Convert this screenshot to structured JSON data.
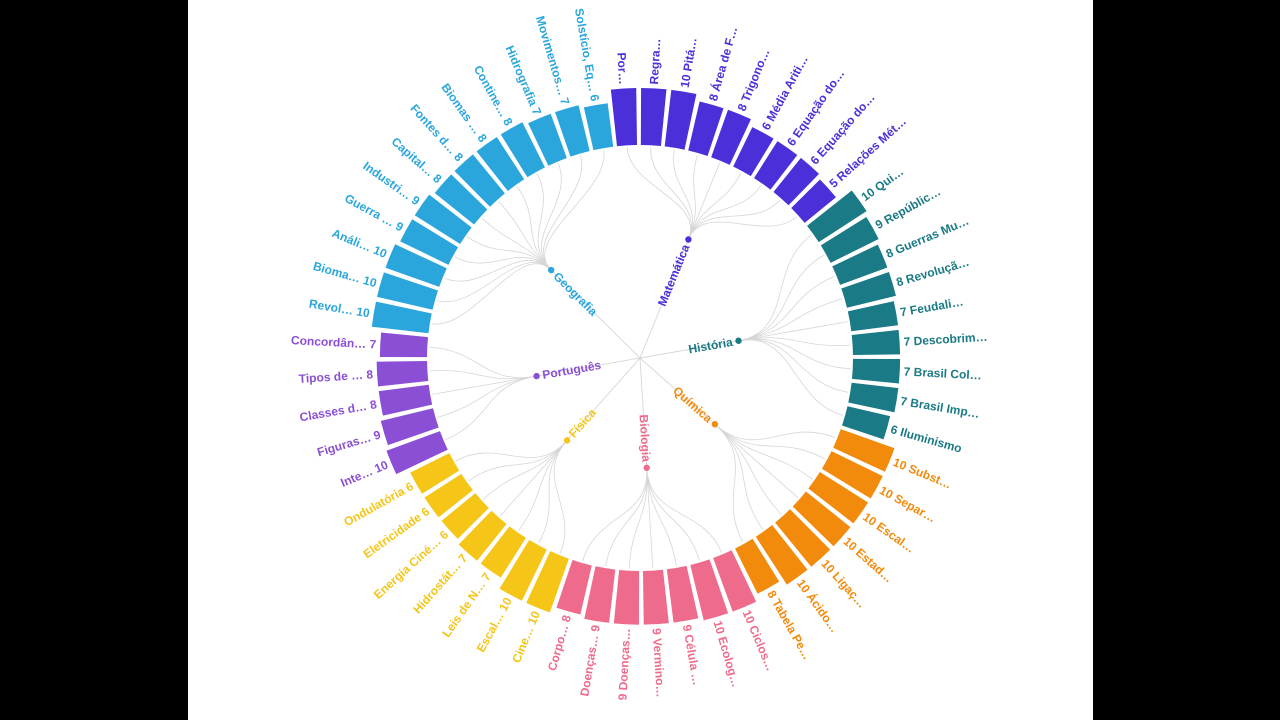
{
  "chart_data": {
    "type": "radial-bar-dendrogram",
    "groups": [
      {
        "name": "Matemática",
        "color": "#4b2fd9",
        "items": [
          {
            "label": "Por…",
            "value": 10
          },
          {
            "label": "Regra…",
            "value": 10
          },
          {
            "label": "10 Pitá…",
            "value": 10
          },
          {
            "label": "8 Área de F…",
            "value": 8
          },
          {
            "label": "8 Trigono…",
            "value": 8
          },
          {
            "label": "6 Média Ariti…",
            "value": 6
          },
          {
            "label": "6 Equação do…",
            "value": 6
          },
          {
            "label": "6 Equação do…",
            "value": 6
          },
          {
            "label": "5 Relações Mét…",
            "value": 5
          }
        ]
      },
      {
        "name": "História",
        "color": "#1a7a85",
        "items": [
          {
            "label": "10 Qui…",
            "value": 10
          },
          {
            "label": "9 Repúblic…",
            "value": 9
          },
          {
            "label": "8 Guerras Mu…",
            "value": 8
          },
          {
            "label": "8 Revoluçã…",
            "value": 8
          },
          {
            "label": "7 Feudali…",
            "value": 7
          },
          {
            "label": "7 Descobrim…",
            "value": 7
          },
          {
            "label": "7 Brasil Col…",
            "value": 7
          },
          {
            "label": "7 Brasil Imp…",
            "value": 7
          },
          {
            "label": "6 Iluminismo",
            "value": 6
          }
        ]
      },
      {
        "name": "Química",
        "color": "#f28a0c",
        "items": [
          {
            "label": "10 Subst…",
            "value": 10
          },
          {
            "label": "10 Separ…",
            "value": 10
          },
          {
            "label": "10 Escal…",
            "value": 10
          },
          {
            "label": "10 Estad…",
            "value": 10
          },
          {
            "label": "10 Ligaç…",
            "value": 10
          },
          {
            "label": "10 Ácido…",
            "value": 10
          },
          {
            "label": "8 Tabela Pe…",
            "value": 8
          }
        ]
      },
      {
        "name": "Biologia",
        "color": "#ef6b8c",
        "items": [
          {
            "label": "10 Ciclos…",
            "value": 10
          },
          {
            "label": "10 Ecolog…",
            "value": 10
          },
          {
            "label": "9 Célula …",
            "value": 9
          },
          {
            "label": "9 Vermino…",
            "value": 9
          },
          {
            "label": "9 Doenças…",
            "value": 9
          },
          {
            "label": "Doenças… 9",
            "value": 9
          },
          {
            "label": "Corpo… 8",
            "value": 8
          }
        ]
      },
      {
        "name": "Física",
        "color": "#f5c518",
        "items": [
          {
            "label": "Cine… 10",
            "value": 10
          },
          {
            "label": "Escal… 10",
            "value": 10
          },
          {
            "label": "Leis de N… 7",
            "value": 7
          },
          {
            "label": "Hidrostát… 7",
            "value": 7
          },
          {
            "label": "Energia Ciné… 6",
            "value": 6
          },
          {
            "label": "Eletricidade 6",
            "value": 6
          },
          {
            "label": "Ondulatória 6",
            "value": 6
          }
        ]
      },
      {
        "name": "Português",
        "color": "#8b4fd6",
        "items": [
          {
            "label": "Inte… 10",
            "value": 10
          },
          {
            "label": "Figuras… 9",
            "value": 9
          },
          {
            "label": "Classes d… 8",
            "value": 8
          },
          {
            "label": "Tipos de … 8",
            "value": 8
          },
          {
            "label": "Concordân… 7",
            "value": 7
          }
        ]
      },
      {
        "name": "Geografia",
        "color": "#2aa6dc",
        "items": [
          {
            "label": "Revol… 10",
            "value": 10
          },
          {
            "label": "Bioma… 10",
            "value": 10
          },
          {
            "label": "Análi… 10",
            "value": 10
          },
          {
            "label": "Guerra … 9",
            "value": 9
          },
          {
            "label": "Industri… 9",
            "value": 9
          },
          {
            "label": "Capital… 8",
            "value": 8
          },
          {
            "label": "Fontes d… 8",
            "value": 8
          },
          {
            "label": "Biomas … 8",
            "value": 8
          },
          {
            "label": "Contine… 8",
            "value": 8
          },
          {
            "label": "Hidrografia 7",
            "value": 7
          },
          {
            "label": "Movimentos… 7",
            "value": 7
          },
          {
            "label": "Solstício, Eq… 6",
            "value": 6
          }
        ]
      }
    ],
    "value_range": [
      0,
      10
    ]
  }
}
